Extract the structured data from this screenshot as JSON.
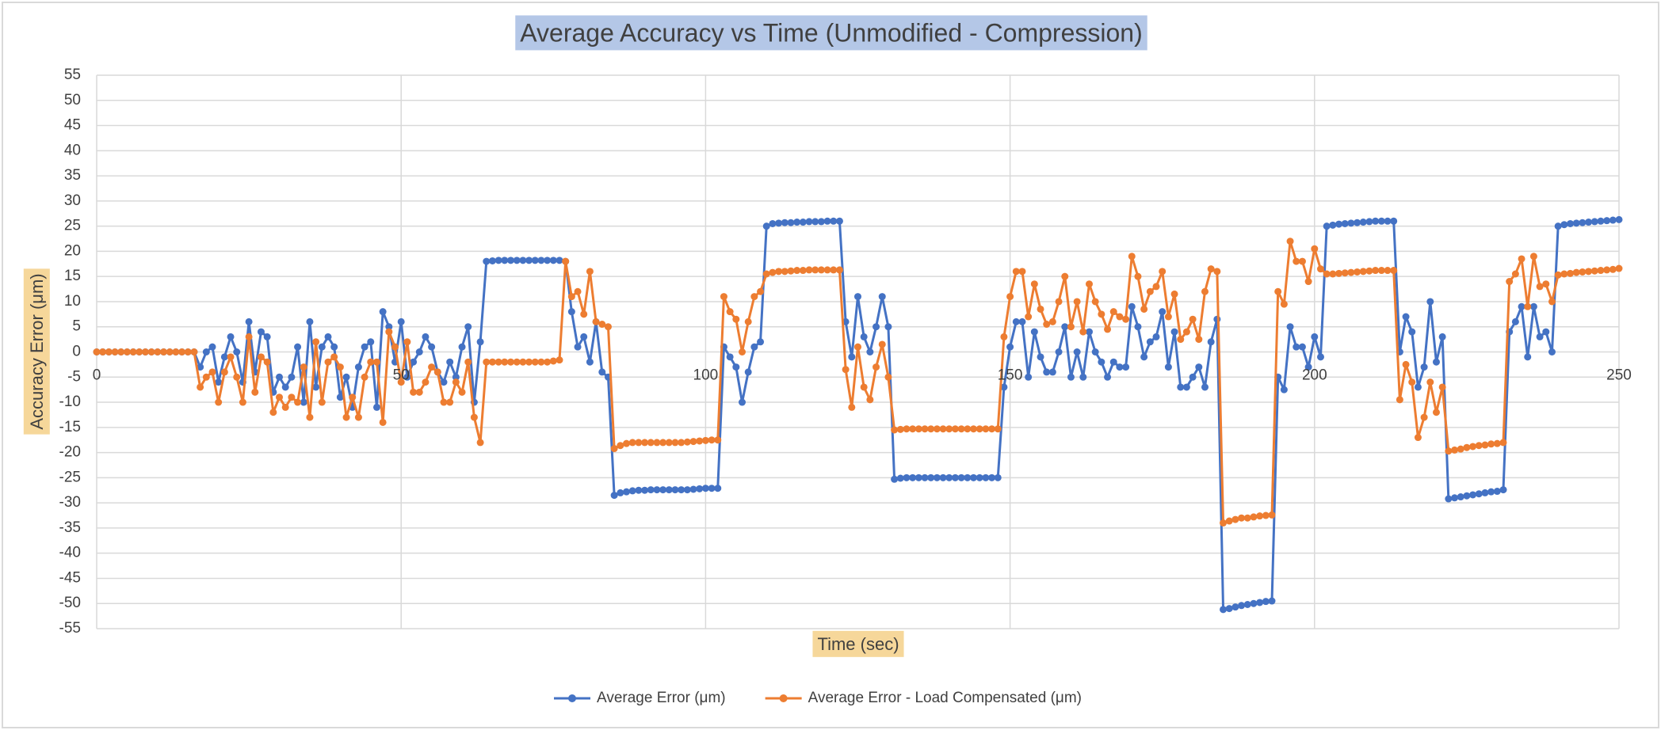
{
  "chart_data": {
    "type": "line",
    "title": "Average Accuracy vs Time (Unmodified - Compression)",
    "x_label": "Time (sec)",
    "y_label": "Accuracy Error (μm)",
    "x": [
      0,
      1,
      2,
      3,
      4,
      5,
      6,
      7,
      8,
      9,
      10,
      11,
      12,
      13,
      14,
      15,
      16,
      17,
      18,
      19,
      20,
      21,
      22,
      23,
      24,
      25,
      26,
      27,
      28,
      29,
      30,
      31,
      32,
      33,
      34,
      35,
      36,
      37,
      38,
      39,
      40,
      41,
      42,
      43,
      44,
      45,
      46,
      47,
      48,
      49,
      50,
      51,
      52,
      53,
      54,
      55,
      56,
      57,
      58,
      59,
      60,
      61,
      62,
      63,
      64,
      65,
      66,
      67,
      68,
      69,
      70,
      71,
      72,
      73,
      74,
      75,
      76,
      77,
      78,
      79,
      80,
      81,
      82,
      83,
      84,
      85,
      86,
      87,
      88,
      89,
      90,
      91,
      92,
      93,
      94,
      95,
      96,
      97,
      98,
      99,
      100,
      101,
      102,
      103,
      104,
      105,
      106,
      107,
      108,
      109,
      110,
      111,
      112,
      113,
      114,
      115,
      116,
      117,
      118,
      119,
      120,
      121,
      122,
      123,
      124,
      125,
      126,
      127,
      128,
      129,
      130,
      131,
      132,
      133,
      134,
      135,
      136,
      137,
      138,
      139,
      140,
      141,
      142,
      143,
      144,
      145,
      146,
      147,
      148,
      149,
      150,
      151,
      152,
      153,
      154,
      155,
      156,
      157,
      158,
      159,
      160,
      161,
      162,
      163,
      164,
      165,
      166,
      167,
      168,
      169,
      170,
      171,
      172,
      173,
      174,
      175,
      176,
      177,
      178,
      179,
      180,
      181,
      182,
      183,
      184,
      185,
      186,
      187,
      188,
      189,
      190,
      191,
      192,
      193,
      194,
      195,
      196,
      197,
      198,
      199,
      200,
      201,
      202,
      203,
      204,
      205,
      206,
      207,
      208,
      209,
      210,
      211,
      212,
      213,
      214,
      215,
      216,
      217,
      218,
      219,
      220,
      221,
      222,
      223,
      224,
      225,
      226,
      227,
      228,
      229,
      230,
      231,
      232,
      233,
      234,
      235,
      236,
      237,
      238,
      239,
      240,
      241,
      242,
      243,
      244,
      245,
      246,
      247,
      248,
      249,
      250
    ],
    "series": [
      {
        "name": "Average Error (μm)",
        "color": "#4472c4",
        "values": [
          0,
          0,
          0,
          0,
          0,
          0,
          0,
          0,
          0,
          0,
          0,
          0,
          0,
          0,
          0,
          0,
          0,
          -3,
          0,
          1,
          -6,
          -1,
          3,
          0,
          -6,
          6,
          -4,
          4,
          3,
          -8,
          -5,
          -7,
          -5,
          1,
          -10,
          6,
          -7,
          1,
          3,
          1,
          -9,
          -5,
          -11,
          -3,
          1,
          2,
          -11,
          8,
          5,
          -2,
          6,
          -5,
          -2,
          0,
          3,
          1,
          -4,
          -6,
          -2,
          -5,
          1,
          5,
          -10,
          2,
          18,
          18.1,
          18.2,
          18.2,
          18.2,
          18.2,
          18.2,
          18.2,
          18.2,
          18.2,
          18.2,
          18.2,
          18.2,
          18,
          8,
          1,
          3,
          -2,
          6,
          -4,
          -5,
          -28.5,
          -28,
          -27.8,
          -27.6,
          -27.5,
          -27.5,
          -27.4,
          -27.4,
          -27.4,
          -27.4,
          -27.4,
          -27.4,
          -27.4,
          -27.3,
          -27.2,
          -27.1,
          -27.1,
          -27.1,
          1,
          -1,
          -3,
          -10,
          -4,
          1,
          2,
          25,
          25.5,
          25.6,
          25.7,
          25.7,
          25.8,
          25.8,
          25.9,
          25.9,
          25.9,
          26,
          26,
          26,
          6,
          -1,
          11,
          3,
          0,
          5,
          11,
          5,
          -25.3,
          -25.1,
          -25,
          -25,
          -25,
          -25,
          -25,
          -25,
          -25,
          -25,
          -25,
          -25,
          -25,
          -25,
          -25,
          -25,
          -25,
          -25,
          -7,
          1,
          6,
          6,
          -5,
          4,
          -1,
          -4,
          -4,
          0,
          5,
          -5,
          0,
          -5,
          4,
          0,
          -2,
          -5,
          -2,
          -3,
          -3,
          9,
          5,
          -1,
          2,
          3,
          8,
          -3,
          4,
          -7,
          -7,
          -5,
          -3,
          -7,
          2,
          6.5,
          -51.2,
          -51,
          -50.7,
          -50.4,
          -50.2,
          -50,
          -49.8,
          -49.6,
          -49.5,
          -5,
          -7.5,
          5,
          1,
          1,
          -3,
          3,
          -1,
          25,
          25.2,
          25.4,
          25.5,
          25.6,
          25.7,
          25.8,
          25.9,
          26,
          26,
          26,
          26,
          0,
          7,
          4,
          -7,
          -3,
          10,
          -2,
          3,
          -29.2,
          -29,
          -28.8,
          -28.6,
          -28.4,
          -28.2,
          -28,
          -27.8,
          -27.7,
          -27.4,
          4,
          6,
          9,
          -1,
          9,
          3,
          4,
          0,
          25,
          25.3,
          25.5,
          25.6,
          25.7,
          25.8,
          25.9,
          26,
          26.1,
          26.2,
          26.3
        ]
      },
      {
        "name": "Average Error - Load Compensated (μm)",
        "color": "#ed7d31",
        "values": [
          0,
          0,
          0,
          0,
          0,
          0,
          0,
          0,
          0,
          0,
          0,
          0,
          0,
          0,
          0,
          0,
          0,
          -7,
          -5,
          -4,
          -10,
          -4,
          -1,
          -5,
          -10,
          3,
          -8,
          -1,
          -2,
          -12,
          -9,
          -11,
          -9,
          -10,
          -3,
          -13,
          2,
          -10,
          -2,
          -1,
          -3,
          -13,
          -9,
          -13,
          -5,
          -2,
          -2,
          -14,
          4,
          1,
          -6,
          2,
          -8,
          -8,
          -6,
          -3,
          -4,
          -10,
          -10,
          -6,
          -8,
          -2,
          -13,
          -18,
          -2,
          -2,
          -2,
          -2,
          -2,
          -2,
          -2,
          -2,
          -2,
          -2,
          -2,
          -1.8,
          -1.6,
          18,
          11,
          12,
          7.5,
          16,
          6,
          5.5,
          5,
          -19.2,
          -18.6,
          -18.2,
          -18,
          -18,
          -18,
          -18,
          -18,
          -18,
          -18,
          -18,
          -18,
          -17.9,
          -17.8,
          -17.7,
          -17.6,
          -17.5,
          -17.5,
          11,
          8,
          6.5,
          0,
          6,
          11,
          12,
          15.5,
          15.8,
          16,
          16,
          16.1,
          16.2,
          16.2,
          16.3,
          16.3,
          16.3,
          16.3,
          16.3,
          16.3,
          -3.5,
          -11,
          1,
          -7,
          -9.5,
          -3,
          1.5,
          -5,
          -15.5,
          -15.4,
          -15.3,
          -15.3,
          -15.3,
          -15.3,
          -15.3,
          -15.3,
          -15.3,
          -15.3,
          -15.3,
          -15.3,
          -15.3,
          -15.3,
          -15.3,
          -15.3,
          -15.3,
          -15.3,
          3,
          11,
          16,
          16,
          7,
          13.5,
          8.5,
          5.5,
          6,
          10,
          15,
          5,
          10,
          4,
          13.5,
          10,
          7.5,
          4.5,
          8,
          7,
          6.5,
          19,
          15,
          8.5,
          12,
          13,
          16,
          7,
          11.5,
          2.5,
          4,
          6.5,
          2.5,
          12,
          16.5,
          16,
          -34,
          -33.6,
          -33.3,
          -33,
          -33,
          -32.8,
          -32.6,
          -32.5,
          -32.4,
          12,
          9.5,
          22,
          18,
          18,
          14,
          20.5,
          16.5,
          15.5,
          15.5,
          15.6,
          15.7,
          15.8,
          15.9,
          16,
          16.1,
          16.2,
          16.2,
          16.2,
          16.2,
          -9.5,
          -2.5,
          -6,
          -17,
          -13,
          -6,
          -12,
          -7,
          -19.7,
          -19.5,
          -19.3,
          -19,
          -18.8,
          -18.6,
          -18.5,
          -18.3,
          -18.2,
          -18,
          14,
          15.5,
          18.5,
          9,
          19,
          13,
          13.5,
          10,
          15.3,
          15.5,
          15.6,
          15.8,
          15.9,
          16,
          16.1,
          16.2,
          16.3,
          16.4,
          16.6
        ]
      }
    ],
    "xlim": [
      0,
      250
    ],
    "xticks": [
      0,
      50,
      100,
      150,
      200,
      250
    ],
    "ylim": [
      -55,
      55
    ],
    "yticks": [
      -55,
      -50,
      -45,
      -40,
      -35,
      -30,
      -25,
      -20,
      -15,
      -10,
      -5,
      0,
      5,
      10,
      15,
      20,
      25,
      30,
      35,
      40,
      45,
      50,
      55
    ],
    "grid": true,
    "legend": "bottom"
  }
}
